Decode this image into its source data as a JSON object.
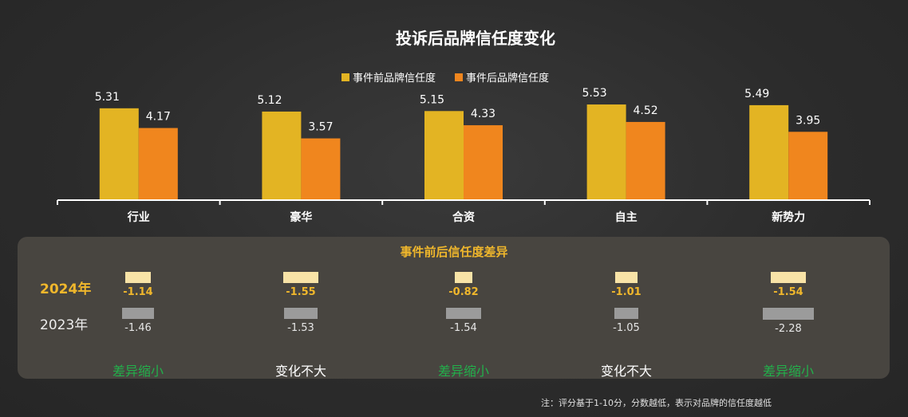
{
  "chart_data": {
    "type": "bar",
    "title": "投诉后品牌信任度变化",
    "categories": [
      "行业",
      "豪华",
      "合资",
      "自主",
      "新势力"
    ],
    "series": [
      {
        "name": "事件前品牌信任度",
        "values": [
          5.31,
          5.12,
          5.15,
          5.53,
          5.49
        ],
        "color": "#e3b423"
      },
      {
        "name": "事件后品牌信任度",
        "values": [
          4.17,
          3.57,
          4.33,
          4.52,
          3.95
        ],
        "color": "#f0861e"
      }
    ],
    "legend_position": "top-center",
    "ylim": [
      0,
      6.5
    ],
    "grid": false
  },
  "difference_panel": {
    "title": "事件前后信任度差异",
    "rows": [
      {
        "label": "2024年",
        "values": [
          -1.14,
          -1.55,
          -0.82,
          -1.01,
          -1.54
        ]
      },
      {
        "label": "2023年",
        "values": [
          -1.46,
          -1.53,
          -1.54,
          -1.05,
          -2.28
        ]
      }
    ],
    "value_labels_2024": [
      "-1.14",
      "-1.55",
      "-0.82",
      "-1.01",
      "-1.54"
    ],
    "value_labels_2023": [
      "-1.46",
      "-1.53",
      "-1.54",
      "-1.05",
      "-2.28"
    ],
    "verdicts": [
      "差异缩小",
      "变化不大",
      "差异缩小",
      "变化不大",
      "差异缩小"
    ],
    "verdict_colors": [
      "#22b04b",
      "#ffffff",
      "#22b04b",
      "#ffffff",
      "#22b04b"
    ],
    "colors": {
      "bar_2024": "#f8e3a7",
      "bar_2023": "#9b9b9b",
      "label_2024": "#f0b72c"
    }
  },
  "note": "注：评分基于1-10分，分数越低，表示对品牌的信任度越低"
}
